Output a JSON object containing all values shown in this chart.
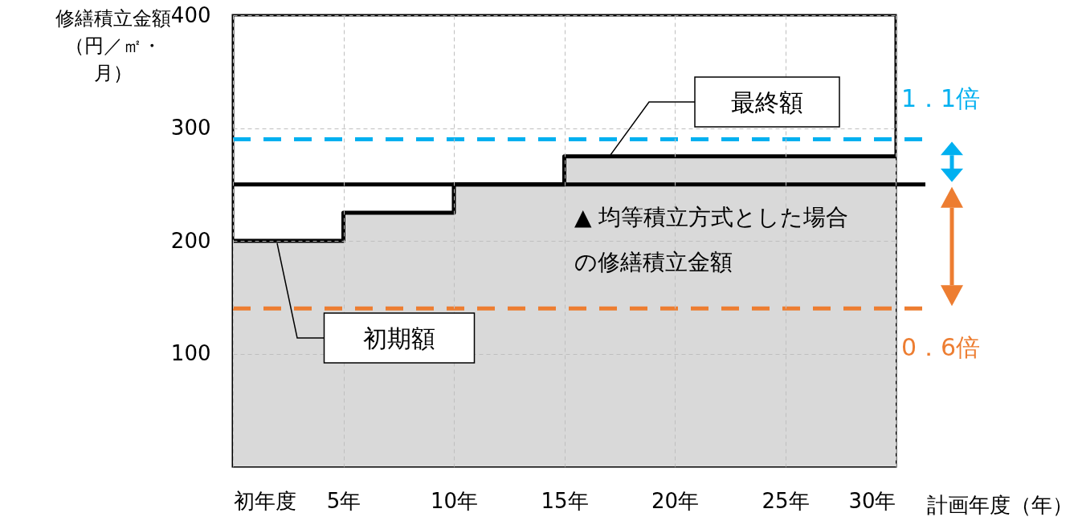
{
  "chart_data": {
    "type": "area",
    "ylabel": "修繕積立金額（円／㎡・月）",
    "xlabel": "計画年度（年）",
    "xlim": [
      0,
      30
    ],
    "xticks": [
      {
        "value": 0,
        "label": "初年度"
      },
      {
        "value": 5,
        "label": "5年"
      },
      {
        "value": 10,
        "label": "10年"
      },
      {
        "value": 15,
        "label": "15年"
      },
      {
        "value": 20,
        "label": "20年"
      },
      {
        "value": 25,
        "label": "25年"
      },
      {
        "value": 30,
        "label": "30年"
      }
    ],
    "ylim": [
      0,
      400
    ],
    "yticks": [
      100,
      200,
      300,
      400
    ],
    "grid": true,
    "series": [
      {
        "color": "#d9d9d9",
        "x": [
          0,
          5,
          10,
          15,
          30
        ],
        "values": [
          200,
          225,
          250,
          275,
          275
        ]
      },
      {
        "type": "step",
        "color": "#000000",
        "x": [
          0,
          5,
          10,
          15,
          30
        ],
        "values": [
          200,
          225,
          250,
          275,
          275
        ]
      }
    ],
    "ref_lines": [
      {
        "axis": "y",
        "value": 250,
        "label": "▲ 均等積立方式とした場合の修繕積立金額",
        "color": "#000000",
        "line_style": "solid"
      },
      {
        "axis": "y",
        "value": 290,
        "label": "1．1倍",
        "color": "#00b0f0",
        "line_style": "dashed"
      },
      {
        "axis": "y",
        "value": 140,
        "label": "0．6倍",
        "color": "#ed7d31",
        "line_style": "dashed"
      }
    ],
    "annotations": [
      "最終額",
      "初期額"
    ]
  }
}
